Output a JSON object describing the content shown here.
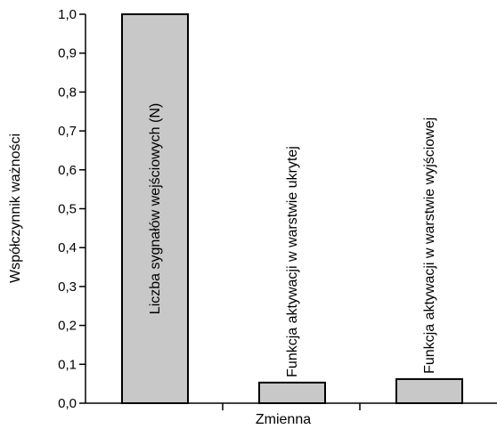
{
  "chart_data": {
    "type": "bar",
    "title": "",
    "xlabel": "Zmienna",
    "ylabel": "Współczynnik ważności",
    "ylim": [
      0,
      1.0
    ],
    "y_ticks": [
      "0,0",
      "0,1",
      "0,2",
      "0,3",
      "0,4",
      "0,5",
      "0,6",
      "0,7",
      "0,8",
      "0,9",
      "1,0"
    ],
    "categories": [
      "Liczba sygnałów wejściowych (N)",
      "Funkcja aktywacji w warstwie ukrytej",
      "Funkcja aktywacji w warstwie wyjściowej"
    ],
    "values": [
      1.0,
      0.053,
      0.062
    ],
    "bar_color": "#c8c8c8",
    "grid": false
  }
}
